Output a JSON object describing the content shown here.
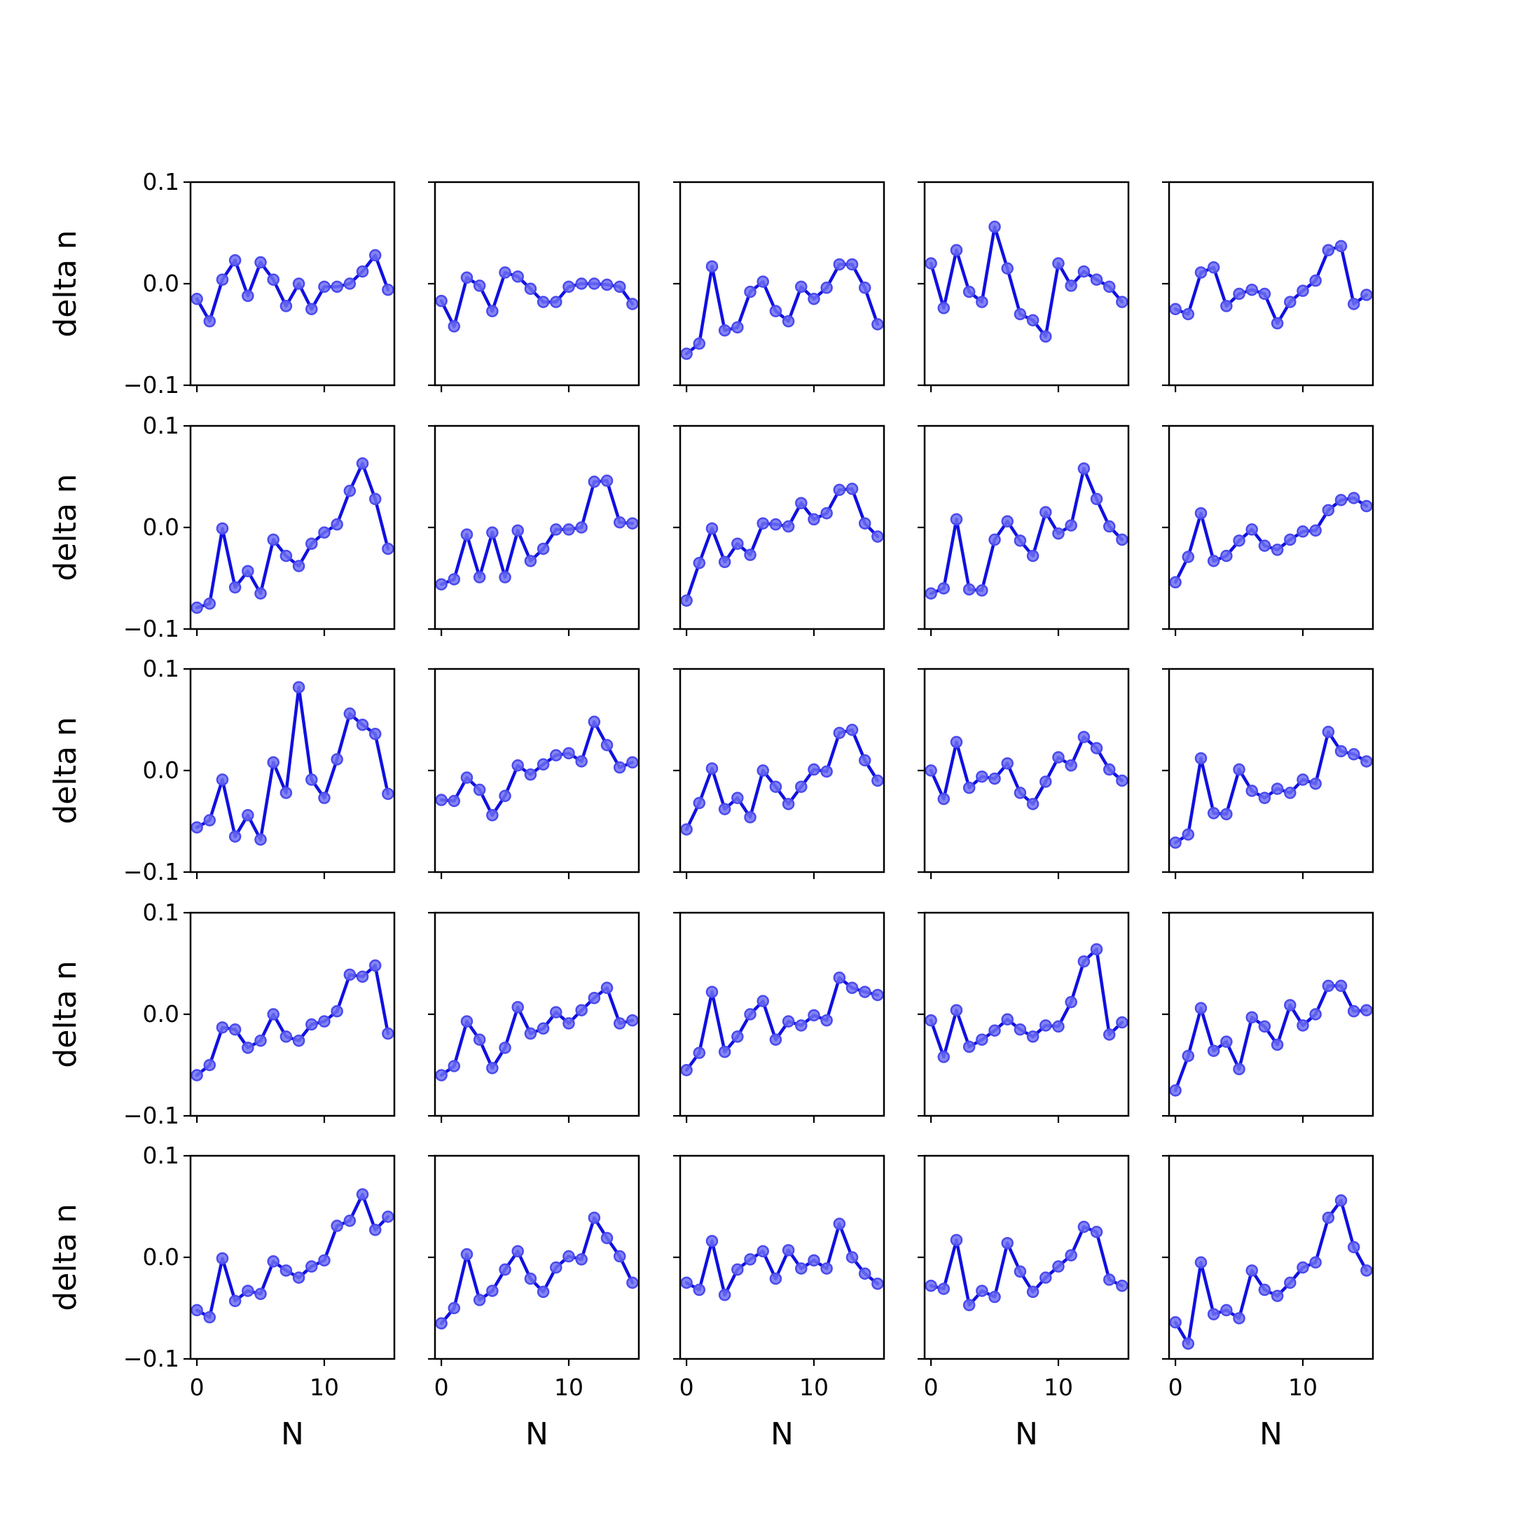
{
  "chart_data": {
    "type": "line",
    "layout": "5x5 small multiples",
    "x": [
      0,
      1,
      2,
      3,
      4,
      5,
      6,
      7,
      8,
      9,
      10,
      11,
      12,
      13,
      14,
      15
    ],
    "xlim": [
      -0.5,
      15.5
    ],
    "xticks": [
      0,
      10
    ],
    "xtick_labels": [
      "0",
      "10"
    ],
    "ylim": [
      -0.1,
      0.1
    ],
    "yticks": [
      -0.1,
      0.0,
      0.1
    ],
    "ytick_labels": [
      "−0.1",
      "0.0",
      "0.1"
    ],
    "xlabel": "N",
    "ylabel": "delta n",
    "grid": false,
    "legend": "none",
    "colors": {
      "line": "#1010e0",
      "marker_fill": "#6f6ff2",
      "marker_edge": "#4a4aee"
    },
    "panels": [
      [
        -0.015,
        -0.037,
        0.004,
        0.023,
        -0.012,
        0.021,
        0.004,
        -0.022,
        0.0,
        -0.025,
        -0.003,
        -0.003,
        0.0,
        0.012,
        0.028,
        -0.006
      ],
      [
        -0.017,
        -0.042,
        0.006,
        -0.002,
        -0.027,
        0.011,
        0.007,
        -0.005,
        -0.018,
        -0.018,
        -0.003,
        0.0,
        0.0,
        -0.001,
        -0.003,
        -0.02
      ],
      [
        -0.069,
        -0.059,
        0.017,
        -0.046,
        -0.043,
        -0.008,
        0.002,
        -0.027,
        -0.037,
        -0.003,
        -0.015,
        -0.004,
        0.019,
        0.019,
        -0.004,
        -0.04
      ],
      [
        0.02,
        -0.024,
        0.033,
        -0.008,
        -0.018,
        0.056,
        0.015,
        -0.03,
        -0.036,
        -0.052,
        0.02,
        -0.002,
        0.012,
        0.004,
        -0.003,
        -0.018
      ],
      [
        -0.025,
        -0.03,
        0.011,
        0.016,
        -0.022,
        -0.01,
        -0.006,
        -0.01,
        -0.039,
        -0.018,
        -0.007,
        0.003,
        0.033,
        0.037,
        -0.02,
        -0.011
      ],
      [
        -0.079,
        -0.075,
        -0.001,
        -0.059,
        -0.043,
        -0.065,
        -0.012,
        -0.028,
        -0.038,
        -0.016,
        -0.005,
        0.003,
        0.036,
        0.063,
        0.028,
        -0.021
      ],
      [
        -0.056,
        -0.051,
        -0.007,
        -0.049,
        -0.005,
        -0.049,
        -0.003,
        -0.033,
        -0.021,
        -0.002,
        -0.002,
        0.0,
        0.045,
        0.046,
        0.005,
        0.004
      ],
      [
        -0.072,
        -0.035,
        -0.001,
        -0.034,
        -0.016,
        -0.027,
        0.004,
        0.003,
        0.001,
        0.024,
        0.008,
        0.014,
        0.037,
        0.038,
        0.004,
        -0.009
      ],
      [
        -0.065,
        -0.06,
        0.008,
        -0.061,
        -0.062,
        -0.012,
        0.006,
        -0.013,
        -0.028,
        0.015,
        -0.006,
        0.002,
        0.058,
        0.028,
        0.001,
        -0.012
      ],
      [
        -0.054,
        -0.029,
        0.014,
        -0.033,
        -0.028,
        -0.013,
        -0.002,
        -0.018,
        -0.022,
        -0.012,
        -0.004,
        -0.003,
        0.017,
        0.027,
        0.029,
        0.021
      ],
      [
        -0.056,
        -0.049,
        -0.009,
        -0.065,
        -0.044,
        -0.068,
        0.008,
        -0.022,
        0.082,
        -0.009,
        -0.027,
        0.011,
        0.056,
        0.045,
        0.036,
        -0.023
      ],
      [
        -0.029,
        -0.03,
        -0.007,
        -0.019,
        -0.044,
        -0.025,
        0.005,
        -0.004,
        0.006,
        0.015,
        0.017,
        0.009,
        0.048,
        0.025,
        0.003,
        0.008
      ],
      [
        -0.058,
        -0.032,
        0.002,
        -0.038,
        -0.027,
        -0.046,
        0.0,
        -0.016,
        -0.033,
        -0.016,
        0.001,
        -0.001,
        0.037,
        0.04,
        0.01,
        -0.01
      ],
      [
        0.0,
        -0.028,
        0.028,
        -0.017,
        -0.006,
        -0.008,
        0.007,
        -0.022,
        -0.033,
        -0.011,
        0.013,
        0.005,
        0.033,
        0.022,
        0.001,
        -0.01
      ],
      [
        -0.071,
        -0.063,
        0.012,
        -0.042,
        -0.043,
        0.001,
        -0.02,
        -0.027,
        -0.018,
        -0.022,
        -0.009,
        -0.013,
        0.038,
        0.019,
        0.016,
        0.009
      ],
      [
        -0.06,
        -0.05,
        -0.013,
        -0.015,
        -0.033,
        -0.026,
        0.0,
        -0.022,
        -0.026,
        -0.01,
        -0.007,
        0.003,
        0.039,
        0.037,
        0.048,
        -0.019
      ],
      [
        -0.06,
        -0.051,
        -0.007,
        -0.025,
        -0.053,
        -0.033,
        0.007,
        -0.019,
        -0.014,
        0.002,
        -0.009,
        0.004,
        0.016,
        0.026,
        -0.009,
        -0.006
      ],
      [
        -0.055,
        -0.038,
        0.022,
        -0.037,
        -0.022,
        0.0,
        0.013,
        -0.025,
        -0.007,
        -0.011,
        -0.001,
        -0.006,
        0.036,
        0.026,
        0.022,
        0.019
      ],
      [
        -0.006,
        -0.042,
        0.004,
        -0.032,
        -0.025,
        -0.016,
        -0.005,
        -0.015,
        -0.022,
        -0.011,
        -0.012,
        0.012,
        0.052,
        0.064,
        -0.02,
        -0.008
      ],
      [
        -0.075,
        -0.041,
        0.006,
        -0.036,
        -0.027,
        -0.054,
        -0.003,
        -0.012,
        -0.03,
        0.009,
        -0.011,
        0.0,
        0.028,
        0.028,
        0.003,
        0.004
      ],
      [
        -0.052,
        -0.059,
        -0.001,
        -0.043,
        -0.033,
        -0.036,
        -0.004,
        -0.013,
        -0.02,
        -0.009,
        -0.003,
        0.031,
        0.036,
        0.062,
        0.027,
        0.04
      ],
      [
        -0.065,
        -0.05,
        0.003,
        -0.042,
        -0.033,
        -0.012,
        0.006,
        -0.021,
        -0.034,
        -0.01,
        0.001,
        -0.002,
        0.039,
        0.019,
        0.001,
        -0.025
      ],
      [
        -0.025,
        -0.032,
        0.016,
        -0.037,
        -0.012,
        -0.002,
        0.006,
        -0.021,
        0.007,
        -0.011,
        -0.003,
        -0.011,
        0.033,
        0.0,
        -0.016,
        -0.026
      ],
      [
        -0.028,
        -0.031,
        0.017,
        -0.047,
        -0.033,
        -0.039,
        0.014,
        -0.014,
        -0.034,
        -0.02,
        -0.009,
        0.002,
        0.03,
        0.025,
        -0.022,
        -0.028
      ],
      [
        -0.064,
        -0.085,
        -0.005,
        -0.056,
        -0.052,
        -0.06,
        -0.013,
        -0.032,
        -0.038,
        -0.025,
        -0.01,
        -0.005,
        0.039,
        0.056,
        0.01,
        -0.013
      ]
    ]
  }
}
